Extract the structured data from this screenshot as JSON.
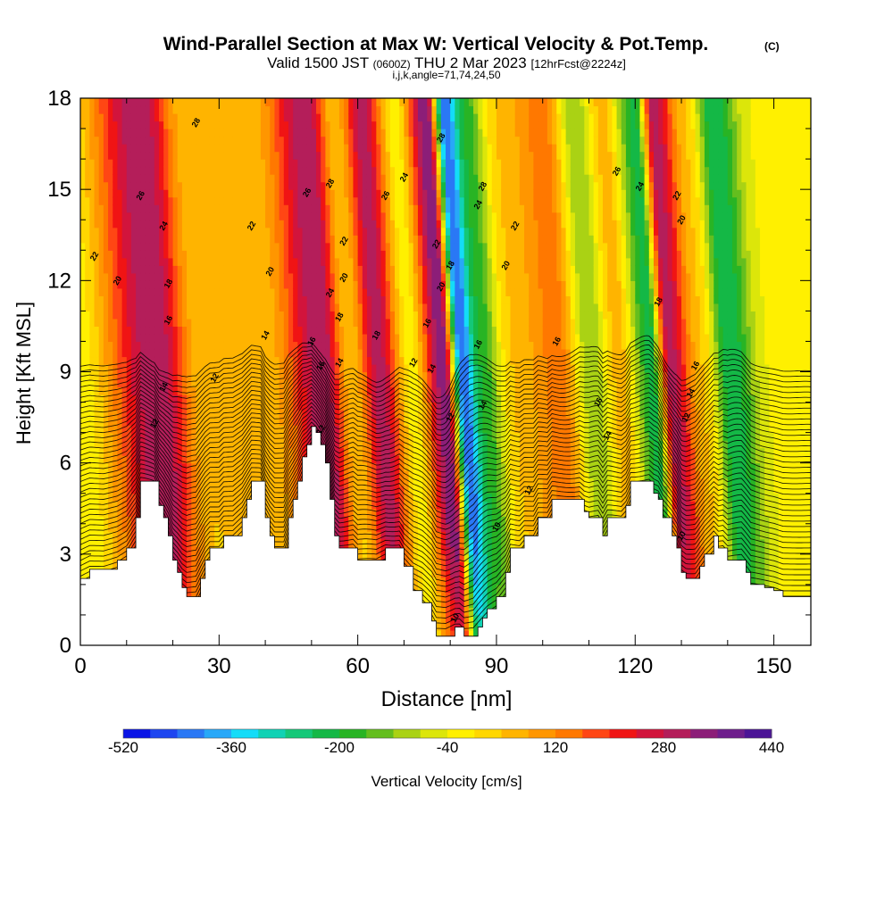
{
  "chart_data": {
    "type": "heatmap",
    "title": "Wind-Parallel Section at Max W: Vertical Velocity & Pot.Temp.",
    "title_mark": "(C)",
    "subtitle": {
      "prefix": "Valid 1500 JST",
      "utc": "(0600Z)",
      "date": "THU 2 Mar 2023",
      "fcst": "[12hrFcst@2224z]"
    },
    "indices": "i,j,k,angle=71,74,24,50",
    "xlabel": "Distance [nm]",
    "ylabel": "Height [Kft MSL]",
    "xlim": [
      0,
      158
    ],
    "ylim": [
      0,
      18
    ],
    "xticks": [
      0,
      30,
      60,
      90,
      120,
      150
    ],
    "yticks": [
      0,
      3,
      6,
      9,
      12,
      15,
      18
    ],
    "colorbar": {
      "label": "Vertical Velocity [cm/s]",
      "min": -520,
      "max": 440,
      "step": 40,
      "tick_labels": [
        -520,
        -360,
        -200,
        -40,
        120,
        280,
        440
      ],
      "colors": [
        "#0a14e6",
        "#1e46f0",
        "#2a78f5",
        "#28a8f8",
        "#14dcf8",
        "#10d2b4",
        "#14c878",
        "#14b846",
        "#28b424",
        "#64be1e",
        "#aad214",
        "#dce60a",
        "#fff000",
        "#ffd700",
        "#ffb400",
        "#ff9600",
        "#ff7800",
        "#ff4614",
        "#f01414",
        "#d2143c",
        "#b41e5a",
        "#8c1e78",
        "#6e1e8c",
        "#4b1496"
      ]
    },
    "vertical_velocity_features": [
      {
        "x": 0,
        "value": -40
      },
      {
        "x": 18,
        "value": 320
      },
      {
        "x": 28,
        "value": 40
      },
      {
        "x": 42,
        "value": 60
      },
      {
        "x": 54,
        "value": 320
      },
      {
        "x": 60,
        "value": 40
      },
      {
        "x": 66,
        "value": 300
      },
      {
        "x": 73,
        "value": -20
      },
      {
        "x": 80,
        "value": 360
      },
      {
        "x": 84,
        "value": -440
      },
      {
        "x": 88,
        "value": -200
      },
      {
        "x": 95,
        "value": 40
      },
      {
        "x": 105,
        "value": 140
      },
      {
        "x": 112,
        "value": -120
      },
      {
        "x": 118,
        "value": 60
      },
      {
        "x": 125,
        "value": -220
      },
      {
        "x": 129,
        "value": 300
      },
      {
        "x": 136,
        "value": 40
      },
      {
        "x": 142,
        "value": -240
      },
      {
        "x": 150,
        "value": -40
      },
      {
        "x": 158,
        "value": -40
      }
    ],
    "terrain": [
      [
        0,
        2.2
      ],
      [
        2,
        2.5
      ],
      [
        5,
        2.5
      ],
      [
        8,
        2.8
      ],
      [
        10,
        3.2
      ],
      [
        12,
        4.2
      ],
      [
        13,
        5.4
      ],
      [
        16,
        5.4
      ],
      [
        17,
        4.6
      ],
      [
        18,
        4.2
      ],
      [
        19,
        3.6
      ],
      [
        20,
        2.8
      ],
      [
        21,
        2.4
      ],
      [
        22,
        1.9
      ],
      [
        23,
        1.6
      ],
      [
        25,
        1.6
      ],
      [
        26,
        2.2
      ],
      [
        27,
        2.8
      ],
      [
        28,
        3.2
      ],
      [
        30,
        3.2
      ],
      [
        31,
        3.6
      ],
      [
        33,
        3.6
      ],
      [
        35,
        4.2
      ],
      [
        36,
        4.8
      ],
      [
        37,
        5.4
      ],
      [
        39,
        5.4
      ],
      [
        40,
        4.2
      ],
      [
        41,
        3.6
      ],
      [
        42,
        3.2
      ],
      [
        44,
        3.2
      ],
      [
        45,
        4.2
      ],
      [
        46,
        4.8
      ],
      [
        47,
        5.4
      ],
      [
        48,
        6.2
      ],
      [
        49,
        6.6
      ],
      [
        50,
        7.2
      ],
      [
        51,
        7.0
      ],
      [
        52,
        6.6
      ],
      [
        53,
        6.0
      ],
      [
        54,
        4.8
      ],
      [
        55,
        3.6
      ],
      [
        56,
        3.2
      ],
      [
        59,
        3.2
      ],
      [
        60,
        2.8
      ],
      [
        64,
        2.8
      ],
      [
        66,
        3.2
      ],
      [
        69,
        3.2
      ],
      [
        70,
        2.6
      ],
      [
        72,
        1.8
      ],
      [
        74,
        1.4
      ],
      [
        76,
        0.8
      ],
      [
        77,
        0.3
      ],
      [
        79,
        0.3
      ],
      [
        81,
        0.6
      ],
      [
        82,
        0.6
      ],
      [
        83,
        0.3
      ],
      [
        85,
        0.3
      ],
      [
        86,
        0.6
      ],
      [
        87,
        0.9
      ],
      [
        88,
        1.2
      ],
      [
        90,
        1.6
      ],
      [
        92,
        2.4
      ],
      [
        93,
        3.2
      ],
      [
        95,
        3.2
      ],
      [
        96,
        3.6
      ],
      [
        98,
        3.6
      ],
      [
        99,
        4.2
      ],
      [
        101,
        4.2
      ],
      [
        102,
        4.8
      ],
      [
        105,
        4.8
      ],
      [
        108,
        4.8
      ],
      [
        109,
        4.4
      ],
      [
        110,
        4.2
      ],
      [
        112,
        4.2
      ],
      [
        113,
        3.6
      ],
      [
        114,
        4.2
      ],
      [
        117,
        4.2
      ],
      [
        118,
        4.6
      ],
      [
        119,
        5.4
      ],
      [
        123,
        5.4
      ],
      [
        124,
        5.0
      ],
      [
        125,
        4.8
      ],
      [
        126,
        4.2
      ],
      [
        128,
        3.6
      ],
      [
        129,
        3.2
      ],
      [
        130,
        2.4
      ],
      [
        131,
        2.2
      ],
      [
        133,
        2.2
      ],
      [
        134,
        2.6
      ],
      [
        135,
        3.0
      ],
      [
        137,
        3.6
      ],
      [
        138,
        3.2
      ],
      [
        139,
        3.2
      ],
      [
        140,
        2.8
      ],
      [
        143,
        2.8
      ],
      [
        144,
        2.4
      ],
      [
        145,
        2.0
      ],
      [
        148,
        1.9
      ],
      [
        150,
        1.8
      ],
      [
        152,
        1.6
      ],
      [
        155,
        1.6
      ],
      [
        158,
        1.6
      ]
    ],
    "theta_contours": {
      "levels": [
        10,
        10.5,
        11,
        11.5,
        12,
        12.5,
        13,
        13.5,
        14,
        14.5,
        15,
        15.5,
        16,
        16.5,
        17,
        17.5,
        18,
        18.5,
        19,
        19.5,
        20,
        20.5,
        21,
        21.5,
        22,
        22.5,
        23,
        23.5,
        24,
        24.5,
        25,
        25.5,
        26,
        26.5,
        27,
        27.5,
        28,
        28.5,
        29,
        29.5,
        30,
        30.5,
        31,
        31.5,
        32
      ],
      "labels": [
        {
          "text": "28",
          "x": 25,
          "y": 17.2
        },
        {
          "text": "26",
          "x": 13,
          "y": 14.8
        },
        {
          "text": "22",
          "x": 3,
          "y": 12.8
        },
        {
          "text": "20",
          "x": 8,
          "y": 12.0
        },
        {
          "text": "24",
          "x": 18,
          "y": 13.8
        },
        {
          "text": "18",
          "x": 19,
          "y": 11.9
        },
        {
          "text": "16",
          "x": 19,
          "y": 10.7
        },
        {
          "text": "14",
          "x": 18,
          "y": 8.5
        },
        {
          "text": "12",
          "x": 16,
          "y": 7.3
        },
        {
          "text": "22",
          "x": 37,
          "y": 13.8
        },
        {
          "text": "20",
          "x": 41,
          "y": 12.3
        },
        {
          "text": "14",
          "x": 40,
          "y": 10.2
        },
        {
          "text": "12",
          "x": 29,
          "y": 8.8
        },
        {
          "text": "26",
          "x": 49,
          "y": 14.9
        },
        {
          "text": "28",
          "x": 54,
          "y": 15.2
        },
        {
          "text": "22",
          "x": 57,
          "y": 13.3
        },
        {
          "text": "20",
          "x": 57,
          "y": 12.1
        },
        {
          "text": "24",
          "x": 54,
          "y": 11.6
        },
        {
          "text": "18",
          "x": 56,
          "y": 10.8
        },
        {
          "text": "16",
          "x": 50,
          "y": 10.0
        },
        {
          "text": "16",
          "x": 52,
          "y": 9.2
        },
        {
          "text": "14",
          "x": 56,
          "y": 9.3
        },
        {
          "text": "12",
          "x": 52,
          "y": 7.1
        },
        {
          "text": "26",
          "x": 66,
          "y": 14.8
        },
        {
          "text": "24",
          "x": 70,
          "y": 15.4
        },
        {
          "text": "18",
          "x": 64,
          "y": 10.2
        },
        {
          "text": "28",
          "x": 78,
          "y": 16.7
        },
        {
          "text": "22",
          "x": 77,
          "y": 13.2
        },
        {
          "text": "18",
          "x": 80,
          "y": 12.5
        },
        {
          "text": "20",
          "x": 78,
          "y": 11.8
        },
        {
          "text": "16",
          "x": 75,
          "y": 10.6
        },
        {
          "text": "12",
          "x": 72,
          "y": 9.3
        },
        {
          "text": "14",
          "x": 76,
          "y": 9.1
        },
        {
          "text": "12",
          "x": 80,
          "y": 7.5
        },
        {
          "text": "28",
          "x": 87,
          "y": 15.1
        },
        {
          "text": "24",
          "x": 86,
          "y": 14.5
        },
        {
          "text": "22",
          "x": 94,
          "y": 13.8
        },
        {
          "text": "20",
          "x": 92,
          "y": 12.5
        },
        {
          "text": "16",
          "x": 86,
          "y": 9.9
        },
        {
          "text": "14",
          "x": 87,
          "y": 7.9
        },
        {
          "text": "16",
          "x": 103,
          "y": 10.0
        },
        {
          "text": "12",
          "x": 97,
          "y": 5.1
        },
        {
          "text": "10",
          "x": 90,
          "y": 3.9
        },
        {
          "text": "10",
          "x": 81,
          "y": 0.9
        },
        {
          "text": "26",
          "x": 116,
          "y": 15.6
        },
        {
          "text": "24",
          "x": 121,
          "y": 15.1
        },
        {
          "text": "22",
          "x": 129,
          "y": 14.8
        },
        {
          "text": "20",
          "x": 130,
          "y": 14.0
        },
        {
          "text": "18",
          "x": 125,
          "y": 11.3
        },
        {
          "text": "16",
          "x": 112,
          "y": 8.0
        },
        {
          "text": "14",
          "x": 114,
          "y": 6.9
        },
        {
          "text": "16",
          "x": 133,
          "y": 9.2
        },
        {
          "text": "14",
          "x": 132,
          "y": 8.3
        },
        {
          "text": "12",
          "x": 131,
          "y": 7.5
        },
        {
          "text": "10",
          "x": 130,
          "y": 3.6
        }
      ]
    }
  }
}
